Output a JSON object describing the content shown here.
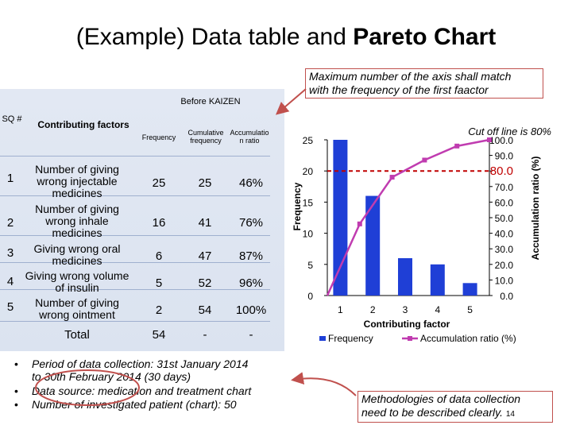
{
  "title": {
    "normal": "(Example) Data table and ",
    "bold": "Pareto Chart"
  },
  "callouts": {
    "axis_note_line1": "Maximum number of the axis shall match",
    "axis_note_line2": "with the frequency of the first faactor",
    "method_line1": "Methodologies of data collection",
    "method_line2": "need to be described clearly.",
    "page_number": "14"
  },
  "table": {
    "caption": "Before KAIZEN",
    "headers": {
      "sq": "SQ #",
      "factors": "Contributing factors",
      "frequency": "Frequency",
      "cumulative": "Cumulative frequency",
      "accumulation": "Accumulatio n ratio"
    },
    "rows": [
      {
        "sq": "1",
        "factor": "Number of giving wrong injectable medicines",
        "frequency": "25",
        "cumulative": "25",
        "ratio": "46%"
      },
      {
        "sq": "2",
        "factor": "Number of giving wrong inhale medicines",
        "frequency": "16",
        "cumulative": "41",
        "ratio": "76%"
      },
      {
        "sq": "3",
        "factor": "Giving wrong oral medicines",
        "frequency": "6",
        "cumulative": "47",
        "ratio": "87%"
      },
      {
        "sq": "4",
        "factor": "Giving wrong volume of insulin",
        "frequency": "5",
        "cumulative": "52",
        "ratio": "96%"
      },
      {
        "sq": "5",
        "factor": "Number of giving wrong ointment",
        "frequency": "2",
        "cumulative": "54",
        "ratio": "100%"
      }
    ],
    "total": {
      "label": "Total",
      "frequency": "54",
      "cumulative": "-",
      "ratio": "-"
    }
  },
  "bullets": [
    "Period of data collection: 31st January 2014",
    "to 30th February 2014 (30 days)",
    "Data source: medication and treatment chart",
    "Number of investigated patient (chart): 50"
  ],
  "chart_data": {
    "type": "bar",
    "categories": [
      "1",
      "2",
      "3",
      "4",
      "5"
    ],
    "series": [
      {
        "name": "Frequency",
        "type": "bar",
        "axis": "left",
        "values": [
          25,
          16,
          6,
          5,
          2
        ],
        "color": "#1f3fd6"
      },
      {
        "name": "Accumulation ratio (%)",
        "type": "line",
        "axis": "right",
        "values": [
          46,
          76,
          87,
          96,
          100
        ],
        "color": "#c03cb0"
      }
    ],
    "xlabel": "Contributing factor",
    "ylabel": "Frequency",
    "y2label": "Accumulation ratio (%)",
    "ylim": [
      0,
      25
    ],
    "yticks": [
      "0",
      "5",
      "10",
      "15",
      "20",
      "25"
    ],
    "y2lim": [
      0,
      100
    ],
    "y2ticks": [
      "0.0",
      "10.0",
      "20.0",
      "30.0",
      "40.0",
      "50.0",
      "60.0",
      "70.0",
      "80.0",
      "90.0",
      "100.0"
    ],
    "cutoff": {
      "value": 80,
      "label": "Cut off line is 80%",
      "color": "#c00000"
    },
    "legend": "bottom"
  }
}
